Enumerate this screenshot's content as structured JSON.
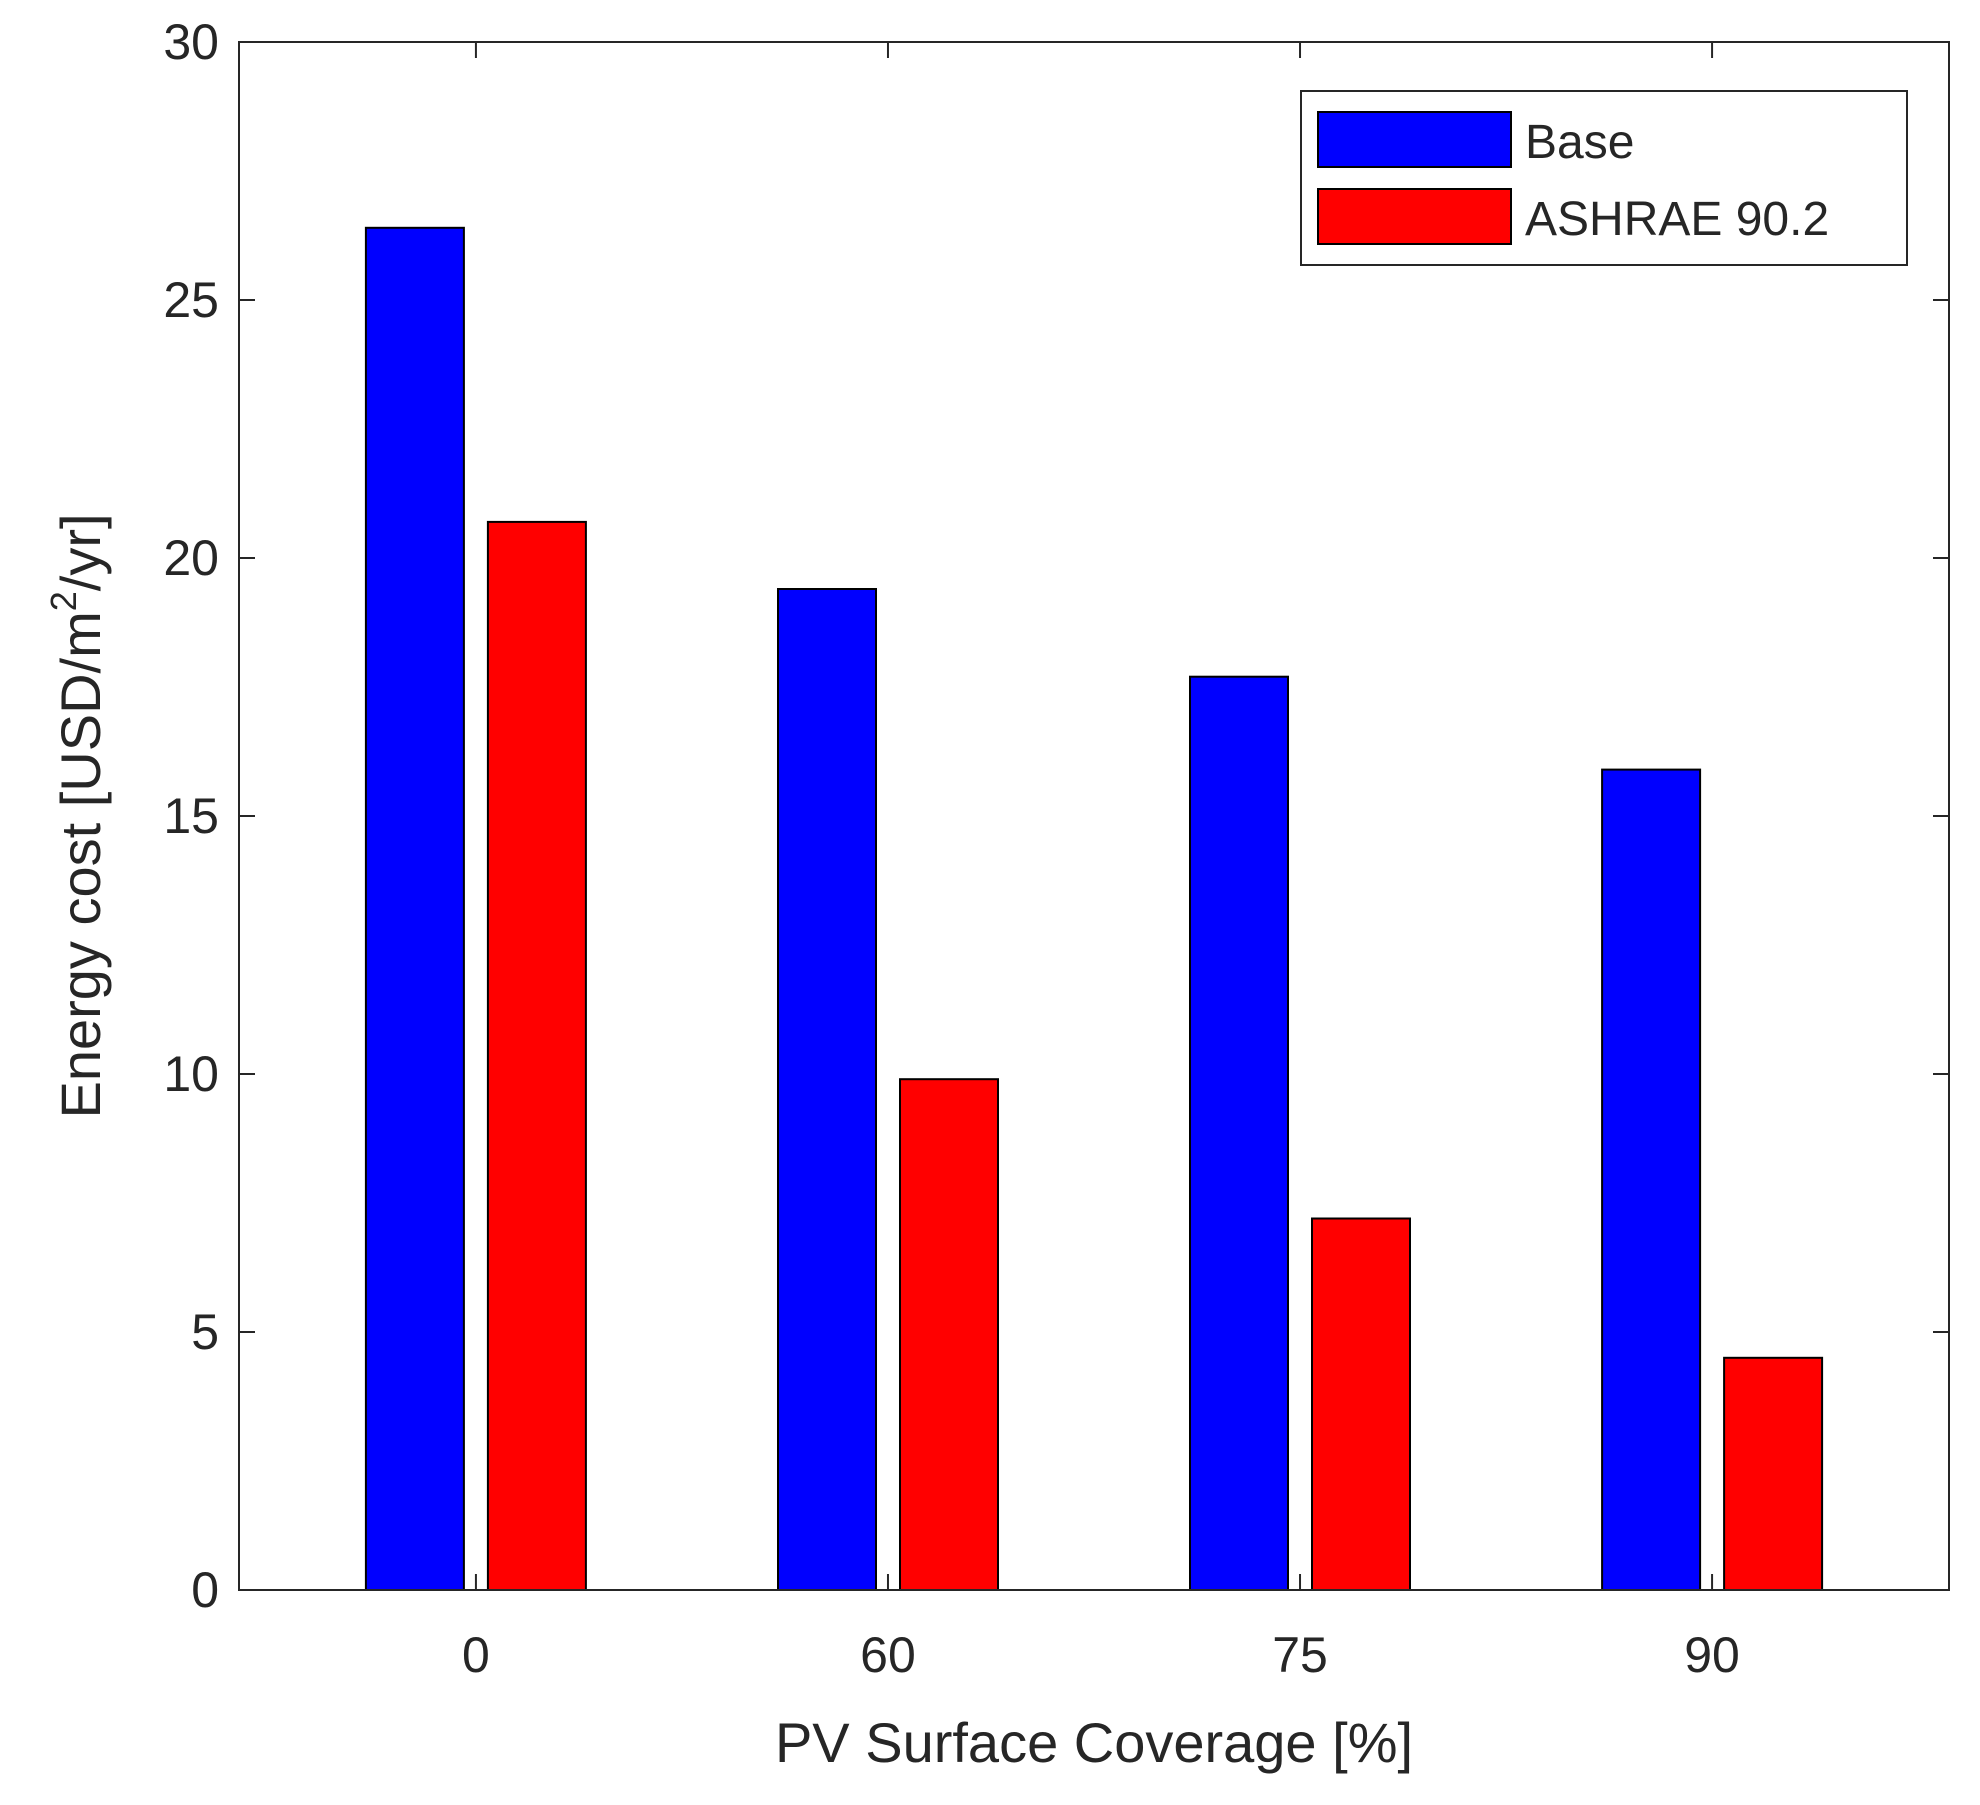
{
  "chart_data": {
    "type": "bar",
    "title": "",
    "xlabel": "PV Surface Coverage [%]",
    "ylabel": "Energy cost [USD/m²/yr]",
    "ylabel_parts": {
      "before": "Energy cost [USD/m",
      "superscript": "2",
      "after": "/yr]"
    },
    "categories": [
      "0",
      "60",
      "75",
      "90"
    ],
    "series": [
      {
        "name": "Base",
        "color": "#0000ff",
        "values": [
          26.4,
          19.4,
          17.7,
          15.9
        ]
      },
      {
        "name": "ASHRAE 90.2",
        "color": "#ff0000",
        "values": [
          20.7,
          9.9,
          7.2,
          4.5
        ]
      }
    ],
    "ylim": [
      0,
      30
    ],
    "yticks": [
      "0",
      "5",
      "10",
      "15",
      "20",
      "25",
      "30"
    ],
    "grid": false,
    "legend_position": "top-right"
  }
}
